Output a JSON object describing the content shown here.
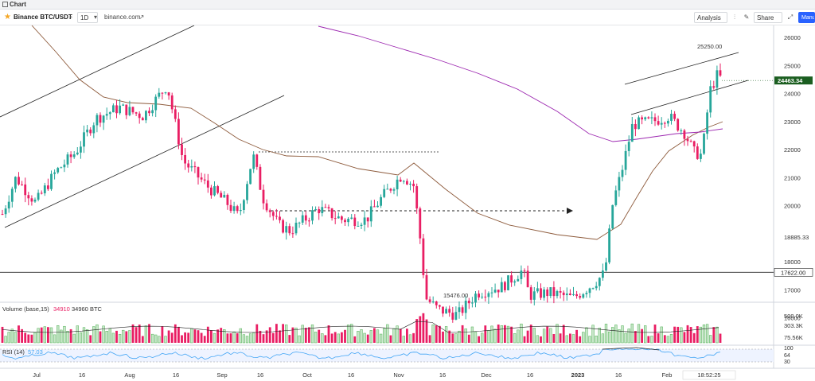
{
  "tab": {
    "label": "Chart"
  },
  "toolbar": {
    "symbol": "Binance BTC/USDT",
    "interval": "1D",
    "source": "binance.com",
    "analysis_label": "Analysis",
    "share_label": "Share",
    "manual_label": "Manual"
  },
  "price_axis": {
    "labels": [
      "26000",
      "25000",
      "24000",
      "23000",
      "22000",
      "21000",
      "20000",
      "18885.33",
      "18000",
      "17000",
      "16000"
    ],
    "current_price": "24463.34",
    "support_level": "17622.00",
    "high_label": "25250.00",
    "low_label": "15476.00"
  },
  "volume_pane": {
    "title": "Volume (base,15)",
    "value1": "34910",
    "value2": "34960 BTC",
    "axis_labels": [
      "500.0K",
      "303.3K",
      "75.56K"
    ]
  },
  "rsi_pane": {
    "title": "RSI (14)",
    "value": "57.03",
    "axis_labels": [
      "100",
      "64",
      "30"
    ]
  },
  "time_axis": {
    "labels": [
      "Jul",
      "16",
      "Aug",
      "16",
      "Sep",
      "16",
      "Oct",
      "16",
      "Nov",
      "16",
      "Dec",
      "16",
      "2023",
      "16",
      "Feb"
    ],
    "current_time": "18:52:25"
  },
  "colors": {
    "up": "#26a69a",
    "down": "#e91e63",
    "ma_short": "#8d5a3b",
    "ma_long": "#9c27b0",
    "rsi": "#42a5f5",
    "price_tag": "#1b5e20"
  },
  "chart_data": {
    "type": "candlestick",
    "symbol": "BTC/USDT",
    "interval": "1D",
    "ylim": [
      15000,
      26500
    ],
    "annotations": [
      {
        "label": "25250.00"
      },
      {
        "label": "15476.00"
      },
      {
        "label": "17622.00"
      },
      {
        "label": "18885.33"
      }
    ],
    "volume_unit": "BTC",
    "rsi_period": 14,
    "rsi_current": 57.03
  }
}
